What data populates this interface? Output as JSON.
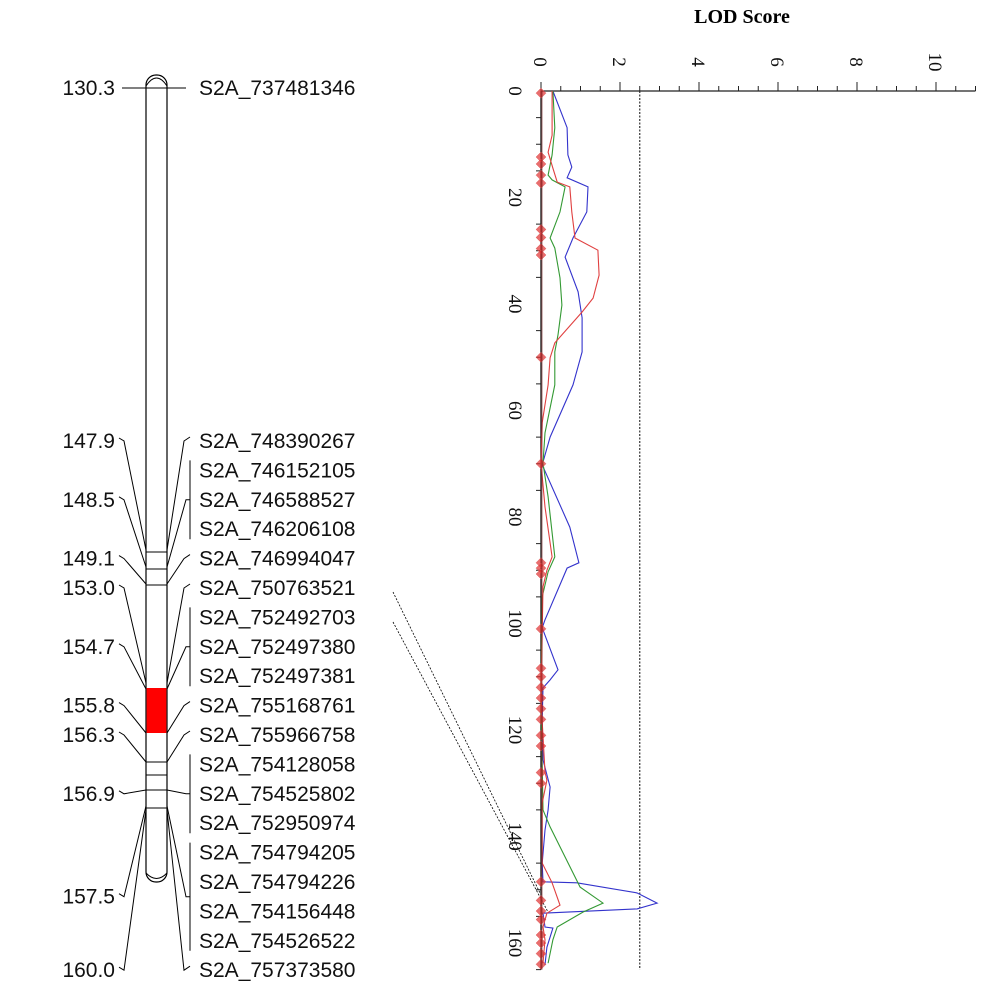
{
  "chart_data": [
    {
      "type": "genetic-linkage-map",
      "positions_unit": "cM",
      "positions": [
        "130.3",
        "147.9",
        "148.5",
        "149.1",
        "153.0",
        "154.7",
        "155.8",
        "156.3",
        "156.9",
        "157.5",
        "160.0"
      ],
      "markers": [
        {
          "name": "S2A_737481346",
          "position": "130.3"
        },
        {
          "name": "S2A_748390267",
          "position": "147.9"
        },
        {
          "name": "S2A_746152105",
          "position": "148.5"
        },
        {
          "name": "S2A_746588527",
          "position": "148.5"
        },
        {
          "name": "S2A_746206108",
          "position": "148.5"
        },
        {
          "name": "S2A_746994047",
          "position": "149.1"
        },
        {
          "name": "S2A_750763521",
          "position": "153.0"
        },
        {
          "name": "S2A_752492703",
          "position": "154.7"
        },
        {
          "name": "S2A_752497380",
          "position": "154.7"
        },
        {
          "name": "S2A_752497381",
          "position": "154.7"
        },
        {
          "name": "S2A_755168761",
          "position": "155.8"
        },
        {
          "name": "S2A_755966758",
          "position": "156.3"
        },
        {
          "name": "S2A_754128058",
          "position": "156.9"
        },
        {
          "name": "S2A_754525802",
          "position": "156.9"
        },
        {
          "name": "S2A_752950974",
          "position": "156.9"
        },
        {
          "name": "S2A_754794205",
          "position": "157.5"
        },
        {
          "name": "S2A_754794226",
          "position": "157.5"
        },
        {
          "name": "S2A_754156448",
          "position": "157.5"
        },
        {
          "name": "S2A_754526522",
          "position": "157.5"
        },
        {
          "name": "S2A_757373580",
          "position": "160.0"
        }
      ],
      "highlight_interval": {
        "from": "154.7",
        "to": "155.8",
        "color": "#ff0000"
      },
      "linked_markers_to_plot": [
        "S2A_750763521",
        "S2A_752492703"
      ]
    },
    {
      "type": "line",
      "orientation": "vertical",
      "title": "LOD Score",
      "x_axis": {
        "label": "LOD Score",
        "range": [
          0,
          11
        ],
        "ticks": [
          0,
          2,
          4,
          6,
          8,
          10
        ],
        "minor_step": 0.5,
        "position": "top"
      },
      "y_axis": {
        "label": "",
        "range": [
          0,
          165
        ],
        "ticks": [
          0,
          20,
          40,
          60,
          80,
          100,
          120,
          140,
          160
        ],
        "minor_step": 5,
        "unit": "cM"
      },
      "threshold": {
        "lod": 2.5,
        "style": "dashed",
        "color": "#333333"
      },
      "grid": false,
      "marker_positions_cM": [
        0.4,
        12.4,
        13.7,
        15.8,
        17.3,
        26,
        27.5,
        29.6,
        30.8,
        50,
        70,
        88.6,
        89.6,
        90.7,
        101,
        108.4,
        110,
        112,
        114,
        116,
        118,
        121,
        123,
        128,
        130,
        148.5,
        152,
        154,
        155.6,
        158.5,
        160,
        162,
        164
      ],
      "marker_color": "#e03030",
      "series": [
        {
          "color": "#3333cc",
          "points": [
            [
              0,
              0.3
            ],
            [
              6.9,
              0.66
            ],
            [
              12,
              0.68
            ],
            [
              14.3,
              0.78
            ],
            [
              16.3,
              0.66
            ],
            [
              18,
              1.19
            ],
            [
              22.7,
              1.16
            ],
            [
              27.6,
              0.81
            ],
            [
              31.2,
              0.61
            ],
            [
              37.7,
              0.94
            ],
            [
              42.6,
              1.04
            ],
            [
              49,
              1.04
            ],
            [
              55.2,
              0.81
            ],
            [
              65,
              0.23
            ],
            [
              70.2,
              0.03
            ],
            [
              81.9,
              0.73
            ],
            [
              88.6,
              0.96
            ],
            [
              89.6,
              0.66
            ],
            [
              99.3,
              0.1
            ],
            [
              100.8,
              0.03
            ],
            [
              108.7,
              0.43
            ],
            [
              110.6,
              0.23
            ],
            [
              112.1,
              0.05
            ],
            [
              118,
              0.03
            ],
            [
              125.6,
              0.05
            ],
            [
              130.7,
              0.23
            ],
            [
              135,
              0.18
            ],
            [
              138.8,
              0.1
            ],
            [
              145,
              0.03
            ],
            [
              148.5,
              0.05
            ],
            [
              148.7,
              0.91
            ],
            [
              150.6,
              2.43
            ],
            [
              152.5,
              2.94
            ],
            [
              153.6,
              2.43
            ],
            [
              154.4,
              0.05
            ],
            [
              157,
              0.1
            ],
            [
              157.2,
              0.3
            ],
            [
              160.8,
              0.15
            ],
            [
              164.1,
              0.1
            ]
          ]
        },
        {
          "color": "#339933",
          "points": [
            [
              0,
              0.3
            ],
            [
              6.9,
              0.35
            ],
            [
              12,
              0.28
            ],
            [
              15.8,
              0.18
            ],
            [
              16.7,
              0.28
            ],
            [
              18,
              0.61
            ],
            [
              22.7,
              0.48
            ],
            [
              27.6,
              0.23
            ],
            [
              29.5,
              0.35
            ],
            [
              35.1,
              0.48
            ],
            [
              40.2,
              0.53
            ],
            [
              45.8,
              0.43
            ],
            [
              49,
              0.35
            ],
            [
              55.2,
              0.35
            ],
            [
              64.2,
              0.1
            ],
            [
              69.9,
              0.05
            ],
            [
              76.2,
              0.18
            ],
            [
              87.5,
              0.35
            ],
            [
              90.3,
              0.18
            ],
            [
              95,
              0.03
            ],
            [
              114.4,
              0
            ],
            [
              135,
              0.05
            ],
            [
              138.2,
              0.23
            ],
            [
              143.1,
              0.56
            ],
            [
              149.5,
              0.99
            ],
            [
              152.5,
              1.57
            ],
            [
              154.2,
              1.06
            ],
            [
              157,
              0.41
            ],
            [
              159.4,
              0.3
            ],
            [
              163.8,
              0.18
            ]
          ]
        },
        {
          "color": "#e04040",
          "points": [
            [
              0,
              0.28
            ],
            [
              8.3,
              0.28
            ],
            [
              11.5,
              0.18
            ],
            [
              14.5,
              0.3
            ],
            [
              17.1,
              0.41
            ],
            [
              18,
              0.73
            ],
            [
              22.7,
              0.78
            ],
            [
              27.6,
              0.86
            ],
            [
              29.9,
              1.44
            ],
            [
              34.6,
              1.47
            ],
            [
              38.9,
              1.32
            ],
            [
              41.5,
              1.04
            ],
            [
              47.3,
              0.35
            ],
            [
              50.1,
              0.23
            ],
            [
              55.2,
              0.18
            ],
            [
              62.3,
              0.03
            ],
            [
              69.9,
              0
            ],
            [
              78.1,
              0.1
            ],
            [
              87.5,
              0.28
            ],
            [
              90,
              0.15
            ],
            [
              93.1,
              0.05
            ],
            [
              114.4,
              0
            ],
            [
              127.9,
              0.1
            ],
            [
              129.4,
              0.15
            ],
            [
              133.7,
              0.03
            ],
            [
              145,
              0.03
            ],
            [
              148.7,
              0.28
            ],
            [
              152.9,
              0.48
            ],
            [
              154.4,
              0.15
            ],
            [
              157,
              0.05
            ],
            [
              159.4,
              0.1
            ],
            [
              163.8,
              0.05
            ]
          ]
        }
      ]
    }
  ]
}
